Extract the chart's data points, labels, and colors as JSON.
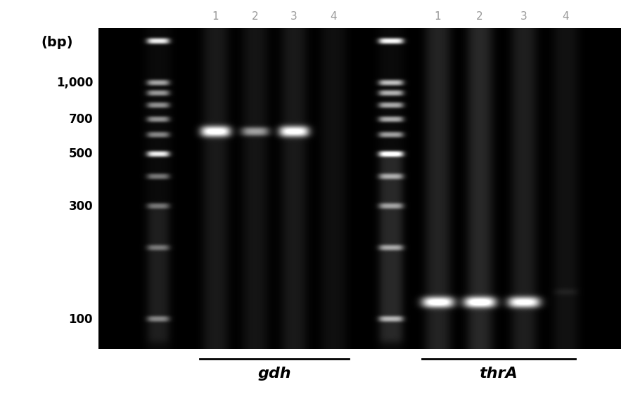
{
  "fig_width": 9.0,
  "fig_height": 5.71,
  "dpi": 100,
  "outside_bg": "#ffffff",
  "bp_label": "(bp)",
  "axis_labels": [
    "1,000",
    "700",
    "500",
    "300",
    "100"
  ],
  "axis_label_bp": [
    1000,
    700,
    500,
    300,
    100
  ],
  "lane_numbers_gdh": [
    "1",
    "2",
    "3",
    "4"
  ],
  "lane_numbers_thra": [
    "1",
    "2",
    "3",
    "4"
  ],
  "gdh_label": "gdh",
  "thra_label": "thrA",
  "bp_marker": [
    1500,
    1000,
    900,
    800,
    700,
    600,
    500,
    400,
    300,
    200,
    100
  ],
  "ladder_gdh_brightness": [
    0.9,
    0.6,
    0.55,
    0.52,
    0.52,
    0.48,
    0.9,
    0.42,
    0.38,
    0.35,
    0.4
  ],
  "ladder_thra_brightness": [
    0.95,
    0.7,
    0.65,
    0.62,
    0.62,
    0.58,
    0.98,
    0.52,
    0.48,
    0.5,
    0.55
  ],
  "gdh_band_bp": 620,
  "gdh_lane1_bright": 0.99,
  "gdh_lane2_bright": 0.55,
  "gdh_lane3_bright": 0.97,
  "thra_band_bp": 118,
  "thra_lane1_bright": 0.97,
  "thra_lane2_bright": 0.99,
  "thra_lane3_bright": 0.95,
  "thra_lane2_smear_bright": 0.3
}
